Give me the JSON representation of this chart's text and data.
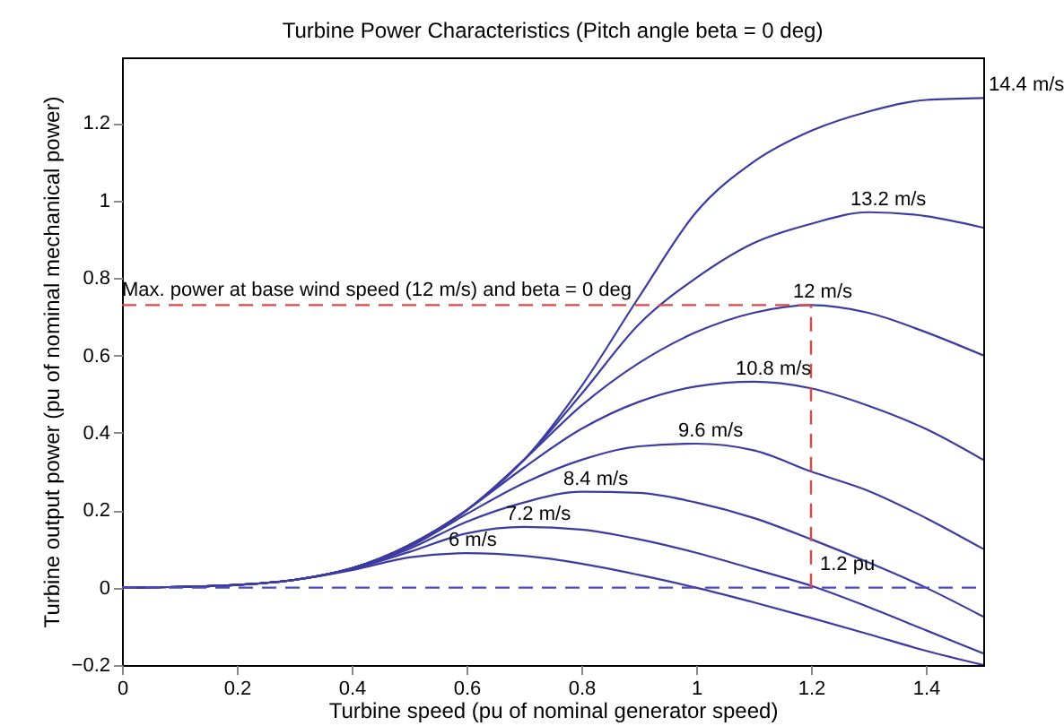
{
  "chart_data": {
    "type": "line",
    "title": "Turbine Power Characteristics (Pitch angle beta = 0 deg)",
    "xlabel": "Turbine speed (pu of nominal generator speed)",
    "ylabel": "Turbine output power (pu of nominal mechanical power)",
    "x": [
      0,
      0.1,
      0.2,
      0.3,
      0.4,
      0.5,
      0.6,
      0.7,
      0.8,
      0.9,
      1.0,
      1.1,
      1.2,
      1.3,
      1.4,
      1.5
    ],
    "series": [
      {
        "name": "6 m/s",
        "color": "#3c3ca0",
        "values": [
          0,
          0.002,
          0.007,
          0.02,
          0.045,
          0.078,
          0.089,
          0.082,
          0.062,
          0.033,
          0.0,
          -0.038,
          -0.078,
          -0.12,
          -0.163,
          -0.2
        ]
      },
      {
        "name": "7.2 m/s",
        "color": "#3c3ca0",
        "values": [
          0,
          0.002,
          0.007,
          0.02,
          0.048,
          0.092,
          0.14,
          0.157,
          0.15,
          0.125,
          0.09,
          0.048,
          0.005,
          -0.05,
          -0.11,
          -0.17
        ]
      },
      {
        "name": "8.4 m/s",
        "color": "#3c3ca0",
        "values": [
          0,
          0.002,
          0.007,
          0.02,
          0.05,
          0.1,
          0.17,
          0.22,
          0.248,
          0.245,
          0.22,
          0.18,
          0.125,
          0.065,
          0.0,
          -0.075
        ]
      },
      {
        "name": "9.6 m/s",
        "color": "#3c3ca0",
        "values": [
          0,
          0.002,
          0.007,
          0.02,
          0.05,
          0.105,
          0.19,
          0.27,
          0.33,
          0.365,
          0.372,
          0.355,
          0.3,
          0.25,
          0.18,
          0.1
        ]
      },
      {
        "name": "10.8 m/s",
        "color": "#3c3ca0",
        "values": [
          0,
          0.002,
          0.007,
          0.02,
          0.05,
          0.108,
          0.2,
          0.31,
          0.41,
          0.48,
          0.52,
          0.532,
          0.515,
          0.47,
          0.41,
          0.33
        ]
      },
      {
        "name": "12 m/s",
        "color": "#3c3ca0",
        "values": [
          0,
          0.002,
          0.007,
          0.02,
          0.05,
          0.11,
          0.2,
          0.33,
          0.47,
          0.58,
          0.66,
          0.71,
          0.73,
          0.71,
          0.66,
          0.6
        ]
      },
      {
        "name": "13.2 m/s",
        "color": "#3c3ca0",
        "values": [
          0,
          0.002,
          0.007,
          0.02,
          0.05,
          0.11,
          0.2,
          0.33,
          0.5,
          0.68,
          0.8,
          0.89,
          0.94,
          0.97,
          0.96,
          0.93
        ]
      },
      {
        "name": "14.4 m/s",
        "color": "#3c3ca0",
        "values": [
          0,
          0.002,
          0.007,
          0.02,
          0.05,
          0.11,
          0.2,
          0.33,
          0.52,
          0.75,
          0.97,
          1.1,
          1.18,
          1.23,
          1.26,
          1.265
        ]
      }
    ],
    "xlim": [
      0,
      1.5
    ],
    "ylim": [
      -0.2,
      1.37
    ],
    "xticks": [
      0,
      0.2,
      0.4,
      0.6,
      0.8,
      1,
      1.2,
      1.4
    ],
    "yticks": [
      -0.2,
      0,
      0.2,
      0.4,
      0.6,
      0.8,
      1,
      1.2
    ],
    "ref_lines": [
      {
        "axis": "y",
        "value": 0,
        "color": "#4a4ac8",
        "line_style": "dashed"
      },
      {
        "axis": "y",
        "value": 0.73,
        "color": "#e04848",
        "line_style": "dashed"
      },
      {
        "axis": "x",
        "value": 1.2,
        "label": "1.2 pu",
        "color": "#e04848",
        "line_style": "dashed"
      }
    ],
    "annotations": [
      {
        "text": "Max. power at base wind speed (12 m/s) and beta = 0 deg",
        "x": 0,
        "y": 0.73
      }
    ],
    "line_style": "solid"
  }
}
